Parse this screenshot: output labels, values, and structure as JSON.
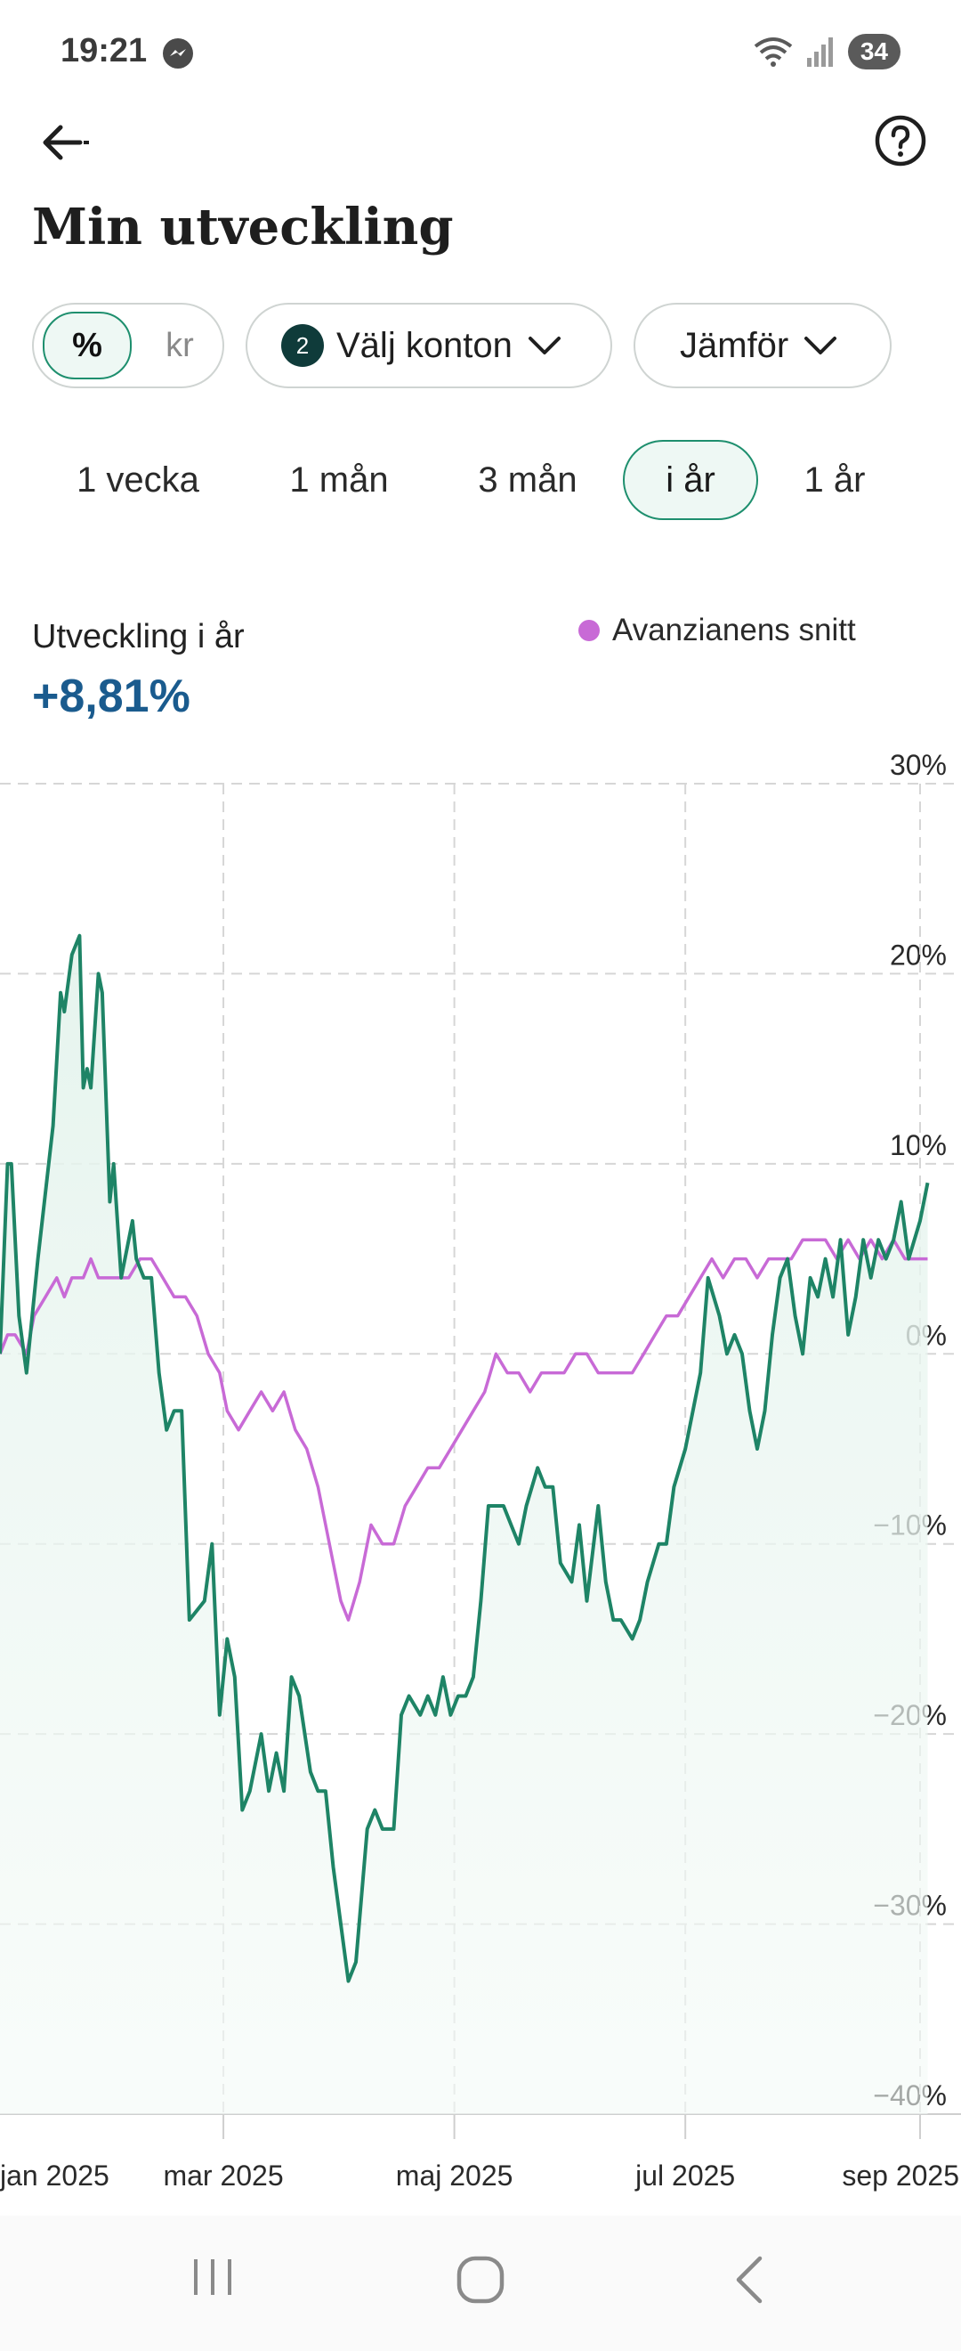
{
  "status_bar": {
    "time": "19:21",
    "battery": "34"
  },
  "header": {
    "back_icon": "arrow-left-icon",
    "help_icon": "help-circle-icon",
    "title": "Min utveckling"
  },
  "filters": {
    "unit_toggle": {
      "options": [
        "%",
        "kr"
      ],
      "selected": "%"
    },
    "accounts": {
      "badge": "2",
      "label": "Välj konton"
    },
    "compare": {
      "label": "Jämför"
    }
  },
  "tabs": [
    {
      "label": "1 vecka",
      "active": false
    },
    {
      "label": "1 mån",
      "active": false
    },
    {
      "label": "3 mån",
      "active": false
    },
    {
      "label": "i år",
      "active": true
    },
    {
      "label": "1 år",
      "active": false
    }
  ],
  "summary": {
    "label": "Utveckling i år",
    "value": "+8,81%"
  },
  "legend": {
    "label": "Avanzianens snitt"
  },
  "colors": {
    "portfolio": "#1e8466",
    "average": "#c86ad6",
    "value_text": "#1a5b8e",
    "accent": "#1e8f6e"
  },
  "chart_data": {
    "type": "line",
    "title": "",
    "xlabel": "",
    "ylabel": "",
    "ylim": [
      -40,
      30
    ],
    "yticks": [
      30,
      20,
      10,
      0,
      -10,
      -20,
      -30,
      -40
    ],
    "ytick_labels": [
      "30%",
      "20%",
      "10%",
      "0%",
      "-10%",
      "-20%",
      "-30%",
      "-40%"
    ],
    "xticks": [
      "2025-01-01",
      "2025-03-01",
      "2025-05-01",
      "2025-07-01",
      "2025-09-01"
    ],
    "xtick_labels": [
      "jan 2025",
      "mar 2025",
      "maj 2025",
      "jul 2025",
      "sep 2025"
    ],
    "grid": true,
    "series": [
      {
        "name": "",
        "color": "#1e8466",
        "points": [
          [
            "2025-01-01",
            0
          ],
          [
            "2025-01-03",
            10
          ],
          [
            "2025-01-04",
            10
          ],
          [
            "2025-01-06",
            2
          ],
          [
            "2025-01-08",
            -1
          ],
          [
            "2025-01-11",
            5
          ],
          [
            "2025-01-15",
            12
          ],
          [
            "2025-01-17",
            19
          ],
          [
            "2025-01-18",
            18
          ],
          [
            "2025-01-20",
            21
          ],
          [
            "2025-01-22",
            22
          ],
          [
            "2025-01-23",
            14
          ],
          [
            "2025-01-24",
            15
          ],
          [
            "2025-01-25",
            14
          ],
          [
            "2025-01-27",
            20
          ],
          [
            "2025-01-28",
            19
          ],
          [
            "2025-01-30",
            8
          ],
          [
            "2025-01-31",
            10
          ],
          [
            "2025-02-02",
            4
          ],
          [
            "2025-02-05",
            7
          ],
          [
            "2025-02-06",
            5
          ],
          [
            "2025-02-08",
            4
          ],
          [
            "2025-02-10",
            4
          ],
          [
            "2025-02-12",
            -1
          ],
          [
            "2025-02-14",
            -4
          ],
          [
            "2025-02-16",
            -3
          ],
          [
            "2025-02-18",
            -3
          ],
          [
            "2025-02-20",
            -14
          ],
          [
            "2025-02-24",
            -13
          ],
          [
            "2025-02-26",
            -10
          ],
          [
            "2025-02-28",
            -19
          ],
          [
            "2025-03-02",
            -15
          ],
          [
            "2025-03-04",
            -17
          ],
          [
            "2025-03-06",
            -24
          ],
          [
            "2025-03-08",
            -23
          ],
          [
            "2025-03-11",
            -20
          ],
          [
            "2025-03-13",
            -23
          ],
          [
            "2025-03-15",
            -21
          ],
          [
            "2025-03-17",
            -23
          ],
          [
            "2025-03-19",
            -17
          ],
          [
            "2025-03-21",
            -18
          ],
          [
            "2025-03-24",
            -22
          ],
          [
            "2025-03-26",
            -23
          ],
          [
            "2025-03-28",
            -23
          ],
          [
            "2025-03-30",
            -27
          ],
          [
            "2025-04-01",
            -30
          ],
          [
            "2025-04-03",
            -33
          ],
          [
            "2025-04-05",
            -32
          ],
          [
            "2025-04-08",
            -25
          ],
          [
            "2025-04-10",
            -24
          ],
          [
            "2025-04-12",
            -25
          ],
          [
            "2025-04-15",
            -25
          ],
          [
            "2025-04-17",
            -19
          ],
          [
            "2025-04-19",
            -18
          ],
          [
            "2025-04-22",
            -19
          ],
          [
            "2025-04-24",
            -18
          ],
          [
            "2025-04-26",
            -19
          ],
          [
            "2025-04-28",
            -17
          ],
          [
            "2025-04-30",
            -19
          ],
          [
            "2025-05-02",
            -18
          ],
          [
            "2025-05-04",
            -18
          ],
          [
            "2025-05-06",
            -17
          ],
          [
            "2025-05-08",
            -13
          ],
          [
            "2025-05-10",
            -8
          ],
          [
            "2025-05-12",
            -8
          ],
          [
            "2025-05-14",
            -8
          ],
          [
            "2025-05-16",
            -9
          ],
          [
            "2025-05-18",
            -10
          ],
          [
            "2025-05-20",
            -8
          ],
          [
            "2025-05-23",
            -6
          ],
          [
            "2025-05-25",
            -7
          ],
          [
            "2025-05-27",
            -7
          ],
          [
            "2025-05-29",
            -11
          ],
          [
            "2025-06-01",
            -12
          ],
          [
            "2025-06-03",
            -9
          ],
          [
            "2025-06-05",
            -13
          ],
          [
            "2025-06-08",
            -8
          ],
          [
            "2025-06-10",
            -12
          ],
          [
            "2025-06-12",
            -14
          ],
          [
            "2025-06-14",
            -14
          ],
          [
            "2025-06-17",
            -15
          ],
          [
            "2025-06-19",
            -14
          ],
          [
            "2025-06-21",
            -12
          ],
          [
            "2025-06-24",
            -10
          ],
          [
            "2025-06-26",
            -10
          ],
          [
            "2025-06-28",
            -7
          ],
          [
            "2025-07-01",
            -5
          ],
          [
            "2025-07-03",
            -3
          ],
          [
            "2025-07-05",
            -1
          ],
          [
            "2025-07-07",
            4
          ],
          [
            "2025-07-10",
            2
          ],
          [
            "2025-07-12",
            0
          ],
          [
            "2025-07-14",
            1
          ],
          [
            "2025-07-16",
            0
          ],
          [
            "2025-07-18",
            -3
          ],
          [
            "2025-07-20",
            -5
          ],
          [
            "2025-07-22",
            -3
          ],
          [
            "2025-07-24",
            1
          ],
          [
            "2025-07-26",
            4
          ],
          [
            "2025-07-28",
            5
          ],
          [
            "2025-07-30",
            2
          ],
          [
            "2025-08-01",
            0
          ],
          [
            "2025-08-03",
            4
          ],
          [
            "2025-08-05",
            3
          ],
          [
            "2025-08-07",
            5
          ],
          [
            "2025-08-09",
            3
          ],
          [
            "2025-08-11",
            6
          ],
          [
            "2025-08-13",
            1
          ],
          [
            "2025-08-15",
            3
          ],
          [
            "2025-08-17",
            6
          ],
          [
            "2025-08-19",
            4
          ],
          [
            "2025-08-21",
            6
          ],
          [
            "2025-08-23",
            5
          ],
          [
            "2025-08-25",
            6
          ],
          [
            "2025-08-27",
            8
          ],
          [
            "2025-08-29",
            5
          ],
          [
            "2025-09-01",
            7
          ],
          [
            "2025-09-03",
            9
          ]
        ]
      },
      {
        "name": "Avanzianens snitt",
        "color": "#c86ad6",
        "points": [
          [
            "2025-01-01",
            0
          ],
          [
            "2025-01-03",
            1
          ],
          [
            "2025-01-05",
            1
          ],
          [
            "2025-01-08",
            0
          ],
          [
            "2025-01-10",
            2
          ],
          [
            "2025-01-13",
            3
          ],
          [
            "2025-01-16",
            4
          ],
          [
            "2025-01-18",
            3
          ],
          [
            "2025-01-20",
            4
          ],
          [
            "2025-01-23",
            4
          ],
          [
            "2025-01-25",
            5
          ],
          [
            "2025-01-27",
            4
          ],
          [
            "2025-01-30",
            4
          ],
          [
            "2025-02-02",
            4
          ],
          [
            "2025-02-04",
            4
          ],
          [
            "2025-02-07",
            5
          ],
          [
            "2025-02-10",
            5
          ],
          [
            "2025-02-13",
            4
          ],
          [
            "2025-02-16",
            3
          ],
          [
            "2025-02-19",
            3
          ],
          [
            "2025-02-22",
            2
          ],
          [
            "2025-02-25",
            0
          ],
          [
            "2025-02-28",
            -1
          ],
          [
            "2025-03-02",
            -3
          ],
          [
            "2025-03-05",
            -4
          ],
          [
            "2025-03-08",
            -3
          ],
          [
            "2025-03-11",
            -2
          ],
          [
            "2025-03-14",
            -3
          ],
          [
            "2025-03-17",
            -2
          ],
          [
            "2025-03-20",
            -4
          ],
          [
            "2025-03-23",
            -5
          ],
          [
            "2025-03-26",
            -7
          ],
          [
            "2025-03-29",
            -10
          ],
          [
            "2025-04-01",
            -13
          ],
          [
            "2025-04-03",
            -14
          ],
          [
            "2025-04-06",
            -12
          ],
          [
            "2025-04-09",
            -9
          ],
          [
            "2025-04-12",
            -10
          ],
          [
            "2025-04-15",
            -10
          ],
          [
            "2025-04-18",
            -8
          ],
          [
            "2025-04-21",
            -7
          ],
          [
            "2025-04-24",
            -6
          ],
          [
            "2025-04-27",
            -6
          ],
          [
            "2025-04-30",
            -5
          ],
          [
            "2025-05-03",
            -4
          ],
          [
            "2025-05-06",
            -3
          ],
          [
            "2025-05-09",
            -2
          ],
          [
            "2025-05-12",
            0
          ],
          [
            "2025-05-15",
            -1
          ],
          [
            "2025-05-18",
            -1
          ],
          [
            "2025-05-21",
            -2
          ],
          [
            "2025-05-24",
            -1
          ],
          [
            "2025-05-27",
            -1
          ],
          [
            "2025-05-30",
            -1
          ],
          [
            "2025-06-02",
            0
          ],
          [
            "2025-06-05",
            0
          ],
          [
            "2025-06-08",
            -1
          ],
          [
            "2025-06-11",
            -1
          ],
          [
            "2025-06-14",
            -1
          ],
          [
            "2025-06-17",
            -1
          ],
          [
            "2025-06-20",
            0
          ],
          [
            "2025-06-23",
            1
          ],
          [
            "2025-06-26",
            2
          ],
          [
            "2025-06-29",
            2
          ],
          [
            "2025-07-02",
            3
          ],
          [
            "2025-07-05",
            4
          ],
          [
            "2025-07-08",
            5
          ],
          [
            "2025-07-11",
            4
          ],
          [
            "2025-07-14",
            5
          ],
          [
            "2025-07-17",
            5
          ],
          [
            "2025-07-20",
            4
          ],
          [
            "2025-07-23",
            5
          ],
          [
            "2025-07-26",
            5
          ],
          [
            "2025-07-29",
            5
          ],
          [
            "2025-08-01",
            6
          ],
          [
            "2025-08-04",
            6
          ],
          [
            "2025-08-07",
            6
          ],
          [
            "2025-08-10",
            5
          ],
          [
            "2025-08-13",
            6
          ],
          [
            "2025-08-16",
            5
          ],
          [
            "2025-08-19",
            6
          ],
          [
            "2025-08-22",
            5
          ],
          [
            "2025-08-25",
            6
          ],
          [
            "2025-08-28",
            5
          ],
          [
            "2025-08-31",
            5
          ],
          [
            "2025-09-03",
            5
          ]
        ]
      }
    ]
  }
}
